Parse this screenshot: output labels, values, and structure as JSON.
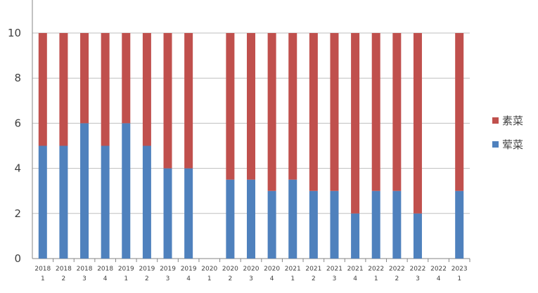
{
  "chart_data": {
    "type": "bar",
    "stacked": true,
    "title": "",
    "xlabel": "",
    "ylabel": "",
    "ylim": [
      0,
      10
    ],
    "yticks": [
      0,
      2,
      4,
      6,
      8,
      10
    ],
    "grid": true,
    "legend_position": "right",
    "categories": [
      [
        "2018",
        "1"
      ],
      [
        "2018",
        "2"
      ],
      [
        "2018",
        "3"
      ],
      [
        "2018",
        "4"
      ],
      [
        "2019",
        "1"
      ],
      [
        "2019",
        "2"
      ],
      [
        "2019",
        "3"
      ],
      [
        "2019",
        "4"
      ],
      [
        "2020",
        "1"
      ],
      [
        "2020",
        "2"
      ],
      [
        "2020",
        "3"
      ],
      [
        "2020",
        "4"
      ],
      [
        "2021",
        "1"
      ],
      [
        "2021",
        "2"
      ],
      [
        "2021",
        "3"
      ],
      [
        "2021",
        "4"
      ],
      [
        "2022",
        "1"
      ],
      [
        "2022",
        "2"
      ],
      [
        "2022",
        "3"
      ],
      [
        "2022",
        "4"
      ],
      [
        "2023",
        "1"
      ]
    ],
    "series": [
      {
        "name": "荤菜",
        "color": "#4f81bd",
        "values": [
          5,
          5,
          6,
          5,
          6,
          5,
          4,
          4,
          null,
          3.5,
          3.5,
          3,
          3.5,
          3,
          3,
          2,
          3,
          3,
          2,
          null,
          3
        ]
      },
      {
        "name": "素菜",
        "color": "#c0504d",
        "values": [
          5,
          5,
          4,
          5,
          4,
          5,
          6,
          6,
          null,
          6.5,
          6.5,
          7,
          6.5,
          7,
          7,
          8,
          7,
          7,
          8,
          null,
          7
        ]
      }
    ],
    "legend_order": [
      1,
      0
    ]
  }
}
